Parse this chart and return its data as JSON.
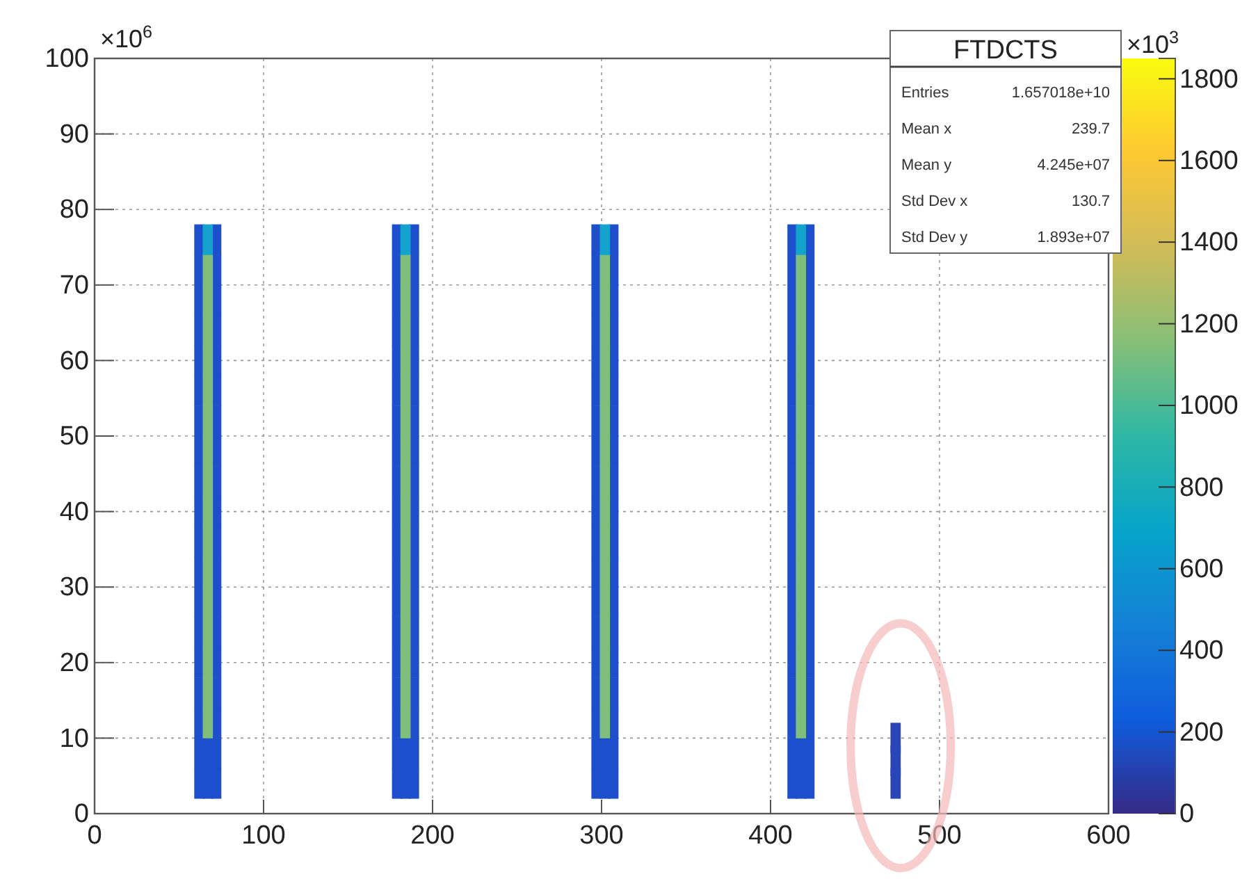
{
  "chart_data": {
    "type": "scatter",
    "title": "FTDCTS",
    "marker": "square",
    "grid": true,
    "xlim": [
      0,
      600
    ],
    "xticks": [
      0,
      100,
      200,
      300,
      400,
      500,
      600
    ],
    "ylim": [
      0,
      100
    ],
    "yticks": [
      0,
      10,
      20,
      30,
      40,
      50,
      60,
      70,
      80,
      90,
      100
    ],
    "clim": [
      0,
      1850
    ],
    "cticks": [
      0,
      200,
      400,
      600,
      800,
      1000,
      1200,
      1400,
      1600,
      1800
    ],
    "annotations": [
      "×10$^{6}$",
      "×10$^{3}$",
      "Entries",
      "1.657018e+10",
      "Mean x",
      "239.7",
      "Mean y",
      "4.245e+07",
      "Std Dev x",
      "130.7",
      "Std Dev y",
      "1.893e+07"
    ],
    "series": [
      {
        "color": "#1d4fcc",
        "x": [
          62,
          72,
          62,
          72,
          62,
          72,
          62,
          72,
          62,
          72,
          62,
          72,
          62,
          72,
          62,
          72,
          62,
          72,
          62,
          72,
          62,
          72,
          62,
          72,
          62,
          72,
          62,
          72,
          62,
          72,
          62,
          72,
          62,
          72,
          62,
          72,
          62,
          72,
          67,
          67,
          179,
          189,
          179,
          189,
          179,
          189,
          179,
          189,
          179,
          189,
          179,
          189,
          179,
          189,
          179,
          189,
          179,
          189,
          179,
          189,
          179,
          189,
          179,
          189,
          179,
          189,
          179,
          189,
          179,
          189,
          179,
          189,
          179,
          189,
          179,
          189,
          179,
          189,
          184,
          184,
          297,
          307,
          297,
          307,
          297,
          307,
          297,
          307,
          297,
          307,
          297,
          307,
          297,
          307,
          297,
          307,
          297,
          307,
          297,
          307,
          297,
          307,
          297,
          307,
          297,
          307,
          297,
          307,
          297,
          307,
          297,
          307,
          297,
          307,
          297,
          307,
          297,
          307,
          302,
          302,
          413,
          423,
          413,
          423,
          413,
          423,
          413,
          423,
          413,
          423,
          413,
          423,
          413,
          423,
          413,
          423,
          413,
          423,
          413,
          423,
          413,
          423,
          413,
          423,
          413,
          423,
          413,
          423,
          413,
          423,
          413,
          423,
          413,
          423,
          413,
          423,
          413,
          423,
          418,
          418
        ],
        "values": [
          4,
          4,
          8,
          8,
          12,
          12,
          16,
          16,
          20,
          20,
          24,
          24,
          28,
          28,
          32,
          32,
          36,
          36,
          40,
          40,
          44,
          44,
          48,
          48,
          52,
          52,
          56,
          56,
          60,
          60,
          64,
          64,
          68,
          68,
          72,
          72,
          76,
          76,
          4,
          8,
          4,
          4,
          8,
          8,
          12,
          12,
          16,
          16,
          20,
          20,
          24,
          24,
          28,
          28,
          32,
          32,
          36,
          36,
          40,
          40,
          44,
          44,
          48,
          48,
          52,
          52,
          56,
          56,
          60,
          60,
          64,
          64,
          68,
          68,
          72,
          72,
          76,
          76,
          4,
          8,
          4,
          4,
          8,
          8,
          12,
          12,
          16,
          16,
          20,
          20,
          24,
          24,
          28,
          28,
          32,
          32,
          36,
          36,
          40,
          40,
          44,
          44,
          48,
          48,
          52,
          52,
          56,
          56,
          60,
          60,
          64,
          64,
          68,
          68,
          72,
          72,
          76,
          76,
          4,
          8,
          4,
          4,
          8,
          8,
          12,
          12,
          16,
          16,
          20,
          20,
          24,
          24,
          28,
          28,
          32,
          32,
          36,
          36,
          40,
          40,
          44,
          44,
          48,
          48,
          52,
          52,
          56,
          56,
          60,
          60,
          64,
          64,
          68,
          68,
          72,
          72,
          76,
          76,
          4,
          8
        ]
      },
      {
        "color": "#7fbf7b",
        "x": [
          67,
          67,
          67,
          67,
          67,
          67,
          67,
          67,
          67,
          67,
          67,
          67,
          67,
          67,
          67,
          67,
          184,
          184,
          184,
          184,
          184,
          184,
          184,
          184,
          184,
          184,
          184,
          184,
          184,
          184,
          184,
          184,
          302,
          302,
          302,
          302,
          302,
          302,
          302,
          302,
          302,
          302,
          302,
          302,
          302,
          302,
          302,
          302,
          418,
          418,
          418,
          418,
          418,
          418,
          418,
          418,
          418,
          418,
          418,
          418,
          418,
          418,
          418,
          418
        ],
        "values": [
          12,
          16,
          20,
          24,
          28,
          32,
          36,
          40,
          44,
          48,
          52,
          56,
          60,
          64,
          68,
          72,
          12,
          16,
          20,
          24,
          28,
          32,
          36,
          40,
          44,
          48,
          52,
          56,
          60,
          64,
          68,
          72,
          12,
          16,
          20,
          24,
          28,
          32,
          36,
          40,
          44,
          48,
          52,
          56,
          60,
          64,
          68,
          72,
          12,
          16,
          20,
          24,
          28,
          32,
          36,
          40,
          44,
          48,
          52,
          56,
          60,
          64,
          68,
          72
        ]
      },
      {
        "color": "#14a3cc",
        "x": [
          67,
          184,
          302,
          418
        ],
        "values": [
          76,
          76,
          76,
          76
        ]
      },
      {
        "color": "#2a45b8",
        "x": [
          474,
          474,
          474
        ],
        "values": [
          4,
          7,
          10
        ]
      }
    ]
  }
}
